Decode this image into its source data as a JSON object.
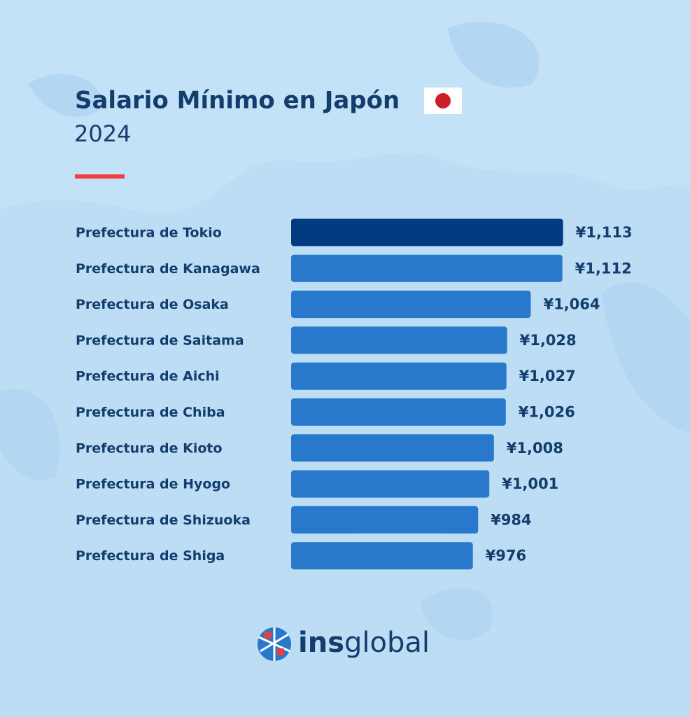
{
  "chart_data": {
    "type": "bar",
    "orientation": "horizontal",
    "title": "Salario Mínimo en Japón",
    "subtitle": "2024",
    "categories": [
      "Prefectura de Tokio",
      "Prefectura de Kanagawa",
      "Prefectura de Osaka",
      "Prefectura de Saitama",
      "Prefectura de Aichi",
      "Prefectura de Chiba",
      "Prefectura de Kioto",
      "Prefectura de Hyogo",
      "Prefectura de Shizuoka",
      "Prefectura de Shiga"
    ],
    "values": [
      1113,
      1112,
      1064,
      1028,
      1027,
      1026,
      1008,
      1001,
      984,
      976
    ],
    "value_labels": [
      "¥1,113",
      "¥1,112",
      "¥1,064",
      "¥1,028",
      "¥1,027",
      "¥1,026",
      "¥1,008",
      "¥1,001",
      "¥984",
      "¥976"
    ],
    "colors": [
      "#033b80",
      "#2878cc",
      "#2878cc",
      "#2878cc",
      "#2878cc",
      "#2878cc",
      "#2878cc",
      "#2878cc",
      "#2878cc",
      "#2878cc"
    ],
    "xlim": [
      700,
      1140
    ]
  },
  "logo": {
    "bold": "ins",
    "light": "global"
  }
}
